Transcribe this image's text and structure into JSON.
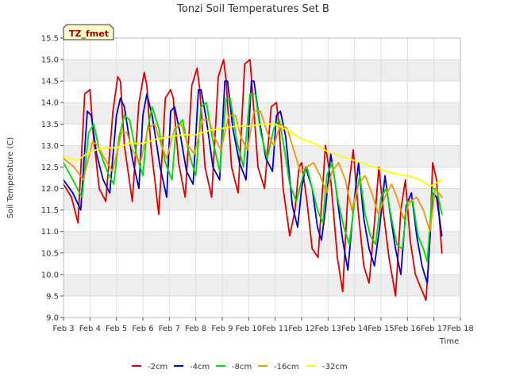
{
  "chart_data": {
    "type": "line",
    "title": "Tonzi Soil Temperatures Set B",
    "xlabel": "Time",
    "ylabel": "Soil Temperature (C)",
    "badge": "TZ_fmet",
    "xlim": [
      3,
      18
    ],
    "ylim": [
      9.0,
      15.5
    ],
    "x_ticks": [
      {
        "v": 3,
        "label": "Feb 3"
      },
      {
        "v": 4,
        "label": "Feb 4"
      },
      {
        "v": 5,
        "label": "Feb 5"
      },
      {
        "v": 6,
        "label": "Feb 6"
      },
      {
        "v": 7,
        "label": "Feb 7"
      },
      {
        "v": 8,
        "label": "Feb 8"
      },
      {
        "v": 9,
        "label": "Feb 9"
      },
      {
        "v": 10,
        "label": "Feb 10"
      },
      {
        "v": 11,
        "label": "Feb 11"
      },
      {
        "v": 12,
        "label": "Feb 12"
      },
      {
        "v": 13,
        "label": "Feb 13"
      },
      {
        "v": 14,
        "label": "Feb 14"
      },
      {
        "v": 15,
        "label": "Feb 15"
      },
      {
        "v": 16,
        "label": "Feb 16"
      },
      {
        "v": 17,
        "label": "Feb 17"
      },
      {
        "v": 18,
        "label": "Feb 18"
      }
    ],
    "y_ticks": [
      "9.0",
      "9.5",
      "10.0",
      "10.5",
      "11.0",
      "11.5",
      "12.0",
      "12.5",
      "13.0",
      "13.5",
      "14.0",
      "14.5",
      "15.0",
      "15.5"
    ],
    "grid": true,
    "legend_position": "bottom",
    "series": [
      {
        "name": "-2cm",
        "color": "#dd0000",
        "x": [
          3.0,
          3.3,
          3.55,
          3.8,
          4.0,
          4.12,
          4.35,
          4.6,
          4.87,
          5.05,
          5.15,
          5.3,
          5.6,
          5.85,
          6.05,
          6.15,
          6.3,
          6.6,
          6.85,
          7.05,
          7.15,
          7.35,
          7.6,
          7.85,
          8.05,
          8.15,
          8.35,
          8.6,
          8.85,
          9.05,
          9.15,
          9.35,
          9.6,
          9.85,
          10.05,
          10.15,
          10.35,
          10.6,
          10.85,
          11.05,
          11.15,
          11.3,
          11.55,
          11.75,
          11.9,
          12.0,
          12.2,
          12.4,
          12.62,
          12.75,
          12.9,
          13.1,
          13.35,
          13.55,
          13.75,
          13.95,
          14.15,
          14.35,
          14.55,
          14.75,
          14.92,
          15.1,
          15.3,
          15.55,
          15.75,
          15.92,
          16.1,
          16.3,
          16.5,
          16.7,
          16.85,
          16.95,
          17.1,
          17.3
        ],
        "y": [
          12.1,
          11.8,
          11.2,
          14.2,
          14.3,
          13.3,
          12.0,
          11.7,
          13.8,
          14.6,
          14.5,
          13.0,
          11.7,
          14.0,
          14.7,
          14.4,
          13.0,
          11.4,
          14.1,
          14.3,
          14.1,
          12.6,
          11.8,
          14.4,
          14.8,
          14.3,
          12.5,
          11.8,
          14.6,
          15.0,
          14.5,
          12.5,
          11.9,
          14.9,
          15.0,
          14.2,
          12.5,
          12.0,
          13.9,
          14.0,
          13.4,
          12.0,
          10.9,
          11.5,
          12.5,
          12.6,
          11.7,
          10.6,
          10.4,
          11.6,
          13.0,
          12.2,
          10.4,
          9.6,
          11.9,
          12.9,
          11.4,
          10.2,
          9.8,
          11.2,
          12.5,
          11.4,
          10.4,
          9.5,
          11.5,
          12.2,
          10.8,
          10.0,
          9.7,
          9.4,
          10.8,
          12.6,
          12.2,
          10.5
        ]
      },
      {
        "name": "-4cm",
        "color": "#0000cc",
        "x": [
          3.0,
          3.35,
          3.65,
          3.9,
          4.05,
          4.25,
          4.5,
          4.75,
          5.0,
          5.15,
          5.3,
          5.6,
          5.85,
          6.0,
          6.15,
          6.35,
          6.65,
          6.9,
          7.05,
          7.2,
          7.4,
          7.65,
          7.9,
          8.1,
          8.2,
          8.4,
          8.65,
          8.9,
          9.1,
          9.2,
          9.4,
          9.65,
          9.9,
          10.1,
          10.2,
          10.4,
          10.65,
          10.9,
          11.05,
          11.2,
          11.4,
          11.65,
          11.85,
          12.0,
          12.15,
          12.4,
          12.6,
          12.75,
          12.9,
          13.1,
          13.3,
          13.55,
          13.75,
          13.95,
          14.15,
          14.35,
          14.55,
          14.75,
          14.95,
          15.15,
          15.35,
          15.55,
          15.75,
          15.95,
          16.15,
          16.35,
          16.55,
          16.75,
          16.95,
          17.1,
          17.3
        ],
        "y": [
          12.2,
          11.9,
          11.5,
          13.8,
          13.7,
          12.8,
          12.2,
          11.9,
          13.7,
          14.1,
          13.9,
          12.7,
          12.0,
          13.7,
          14.2,
          13.7,
          12.5,
          11.8,
          13.8,
          13.9,
          13.3,
          12.4,
          12.1,
          14.3,
          14.3,
          13.6,
          12.5,
          12.2,
          14.5,
          14.5,
          13.4,
          12.6,
          12.2,
          14.5,
          14.5,
          13.6,
          12.7,
          12.4,
          13.7,
          13.8,
          13.2,
          11.6,
          11.1,
          12.0,
          12.5,
          12.0,
          11.1,
          10.8,
          11.5,
          12.8,
          12.0,
          10.8,
          10.1,
          11.5,
          12.6,
          11.3,
          10.6,
          10.2,
          11.1,
          12.3,
          11.4,
          10.6,
          10.0,
          11.6,
          11.9,
          10.9,
          10.2,
          9.8,
          11.9,
          11.8,
          10.9
        ]
      },
      {
        "name": "-8cm",
        "color": "#00dd00",
        "x": [
          3.0,
          3.35,
          3.7,
          3.95,
          4.15,
          4.35,
          4.65,
          4.9,
          5.1,
          5.3,
          5.5,
          5.75,
          6.0,
          6.15,
          6.35,
          6.6,
          6.85,
          7.1,
          7.25,
          7.5,
          7.75,
          8.0,
          8.2,
          8.4,
          8.65,
          8.9,
          9.15,
          9.3,
          9.55,
          9.8,
          10.05,
          10.25,
          10.45,
          10.7,
          10.95,
          11.15,
          11.3,
          11.55,
          11.8,
          12.05,
          12.2,
          12.4,
          12.6,
          12.8,
          12.95,
          13.15,
          13.35,
          13.6,
          13.8,
          14.0,
          14.2,
          14.4,
          14.6,
          14.8,
          15.0,
          15.2,
          15.4,
          15.6,
          15.8,
          16.0,
          16.2,
          16.4,
          16.6,
          16.75,
          16.95,
          17.1,
          17.3
        ],
        "y": [
          12.6,
          12.2,
          11.8,
          13.3,
          13.5,
          12.9,
          12.4,
          12.1,
          13.2,
          13.7,
          13.6,
          12.8,
          12.3,
          13.3,
          13.9,
          13.4,
          12.6,
          12.2,
          13.4,
          13.6,
          12.8,
          12.3,
          13.9,
          14.0,
          13.1,
          12.4,
          14.1,
          14.1,
          13.1,
          12.5,
          14.2,
          14.2,
          13.3,
          12.7,
          13.4,
          13.6,
          13.1,
          12.1,
          11.7,
          12.3,
          12.5,
          12.0,
          11.5,
          11.2,
          12.3,
          12.6,
          11.8,
          11.1,
          10.7,
          11.7,
          12.3,
          11.4,
          10.9,
          10.7,
          11.8,
          12.0,
          11.3,
          10.7,
          10.6,
          11.7,
          11.7,
          10.9,
          10.6,
          10.3,
          12.0,
          12.0,
          11.4
        ]
      },
      {
        "name": "-16cm",
        "color": "#ee9900",
        "x": [
          3.0,
          3.4,
          3.75,
          4.1,
          4.3,
          4.55,
          4.85,
          5.2,
          5.4,
          5.6,
          5.9,
          6.2,
          6.45,
          6.7,
          6.9,
          7.2,
          7.45,
          7.7,
          7.95,
          8.25,
          8.5,
          8.7,
          8.95,
          9.25,
          9.5,
          9.7,
          9.95,
          10.2,
          10.45,
          10.7,
          10.95,
          11.2,
          11.45,
          11.7,
          11.95,
          12.2,
          12.45,
          12.7,
          12.95,
          13.15,
          13.4,
          13.65,
          13.9,
          14.15,
          14.4,
          14.65,
          14.9,
          15.15,
          15.4,
          15.6,
          15.85,
          16.1,
          16.35,
          16.6,
          16.85,
          17.05,
          17.3
        ],
        "y": [
          12.7,
          12.5,
          12.2,
          13.1,
          13.0,
          12.7,
          12.4,
          13.3,
          13.3,
          12.9,
          12.6,
          13.4,
          13.5,
          13.0,
          12.7,
          13.4,
          13.5,
          13.0,
          12.8,
          13.6,
          13.6,
          13.2,
          12.9,
          13.7,
          13.7,
          13.2,
          12.9,
          13.8,
          13.8,
          13.3,
          13.0,
          13.5,
          13.4,
          12.9,
          12.4,
          12.5,
          12.6,
          12.3,
          11.9,
          12.4,
          12.6,
          12.2,
          11.5,
          12.1,
          12.3,
          11.9,
          11.4,
          11.8,
          12.1,
          11.8,
          11.3,
          11.7,
          11.8,
          11.5,
          11.0,
          12.0,
          11.8
        ]
      },
      {
        "name": "-32cm",
        "color": "#ffff00",
        "x": [
          3.0,
          3.5,
          4.0,
          4.5,
          5.0,
          5.5,
          6.0,
          6.5,
          7.0,
          7.5,
          8.0,
          8.5,
          9.0,
          9.5,
          10.0,
          10.5,
          11.0,
          11.5,
          12.0,
          12.5,
          13.0,
          13.5,
          14.0,
          14.5,
          15.0,
          15.5,
          16.0,
          16.5,
          16.85,
          17.0,
          17.3
        ],
        "y": [
          12.75,
          12.65,
          12.85,
          12.95,
          12.95,
          13.05,
          13.05,
          13.15,
          13.2,
          13.25,
          13.25,
          13.35,
          13.4,
          13.45,
          13.45,
          13.5,
          13.5,
          13.35,
          13.15,
          13.05,
          12.85,
          12.75,
          12.65,
          12.55,
          12.45,
          12.35,
          12.3,
          12.2,
          12.05,
          12.1,
          12.2
        ]
      }
    ]
  }
}
